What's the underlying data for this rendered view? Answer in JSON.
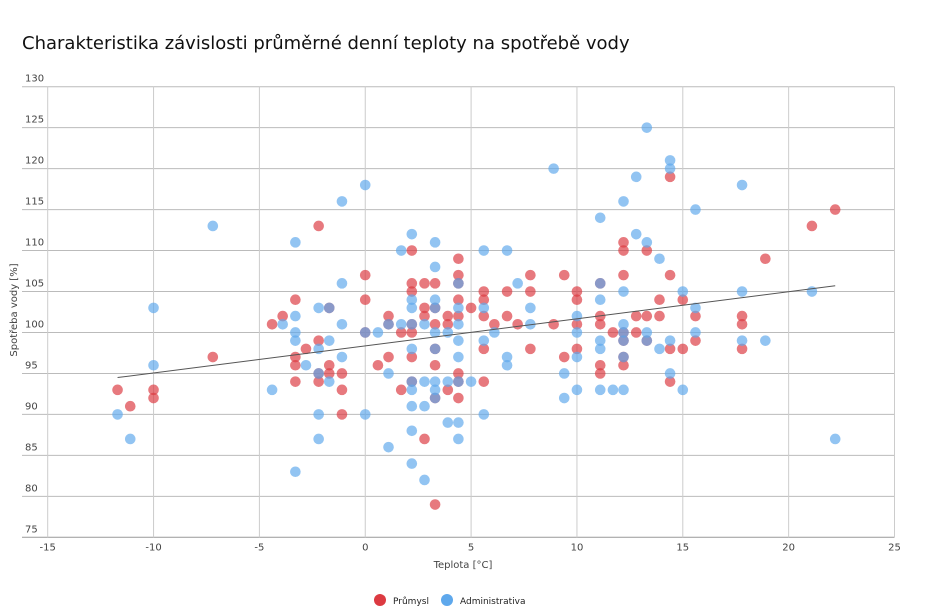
{
  "chart_data": {
    "type": "scatter",
    "title": "Charakteristika závislosti průměrné denní teploty na spotřebě vody",
    "xlabel": "Teplota [°C]",
    "ylabel": "Spotřeba vody [%]",
    "xlim": [
      -15,
      25
    ],
    "ylim": [
      75,
      130
    ],
    "xticks": [
      -15,
      -10,
      -5,
      0,
      5,
      10,
      15,
      20,
      25
    ],
    "yticks": [
      75,
      80,
      85,
      90,
      95,
      100,
      105,
      110,
      115,
      120,
      125,
      130
    ],
    "grid": true,
    "legend": "bottom",
    "trendline": {
      "x": [
        -11.7,
        22.2
      ],
      "y": [
        94.5,
        105.7
      ],
      "color": "#555555"
    },
    "series": [
      {
        "name": "Průmysl",
        "color": "#dc3a41",
        "points": [
          [
            -11.7,
            93
          ],
          [
            -11.1,
            91
          ],
          [
            -10,
            93
          ],
          [
            -10,
            92
          ],
          [
            -7.2,
            97
          ],
          [
            -4.4,
            101
          ],
          [
            -3.9,
            102
          ],
          [
            -3.3,
            104
          ],
          [
            -3.3,
            97
          ],
          [
            -3.3,
            96
          ],
          [
            -3.3,
            94
          ],
          [
            -2.8,
            98
          ],
          [
            -2.2,
            113
          ],
          [
            -2.2,
            99
          ],
          [
            -2.2,
            94
          ],
          [
            -2.2,
            95
          ],
          [
            -1.7,
            103
          ],
          [
            -1.7,
            96
          ],
          [
            -1.7,
            95
          ],
          [
            -1.1,
            95
          ],
          [
            -1.1,
            93
          ],
          [
            -1.1,
            90
          ],
          [
            0,
            107
          ],
          [
            0,
            104
          ],
          [
            0,
            100
          ],
          [
            0.6,
            96
          ],
          [
            1.1,
            102
          ],
          [
            1.1,
            101
          ],
          [
            1.1,
            97
          ],
          [
            1.7,
            100
          ],
          [
            1.7,
            93
          ],
          [
            2.2,
            110
          ],
          [
            2.2,
            106
          ],
          [
            2.2,
            105
          ],
          [
            2.2,
            101
          ],
          [
            2.2,
            100
          ],
          [
            2.2,
            97
          ],
          [
            2.2,
            94
          ],
          [
            2.8,
            106
          ],
          [
            2.8,
            103
          ],
          [
            2.8,
            102
          ],
          [
            2.8,
            87
          ],
          [
            3.3,
            106
          ],
          [
            3.3,
            103
          ],
          [
            3.3,
            101
          ],
          [
            3.3,
            98
          ],
          [
            3.3,
            96
          ],
          [
            3.3,
            92
          ],
          [
            3.3,
            79
          ],
          [
            3.9,
            102
          ],
          [
            3.9,
            101
          ],
          [
            3.9,
            93
          ],
          [
            4.4,
            109
          ],
          [
            4.4,
            107
          ],
          [
            4.4,
            106
          ],
          [
            4.4,
            104
          ],
          [
            4.4,
            102
          ],
          [
            4.4,
            95
          ],
          [
            4.4,
            94
          ],
          [
            4.4,
            92
          ],
          [
            5,
            103
          ],
          [
            5.6,
            105
          ],
          [
            5.6,
            104
          ],
          [
            5.6,
            102
          ],
          [
            5.6,
            98
          ],
          [
            5.6,
            94
          ],
          [
            6.1,
            101
          ],
          [
            6.7,
            105
          ],
          [
            6.7,
            102
          ],
          [
            7.2,
            101
          ],
          [
            7.8,
            107
          ],
          [
            7.8,
            105
          ],
          [
            7.8,
            98
          ],
          [
            8.9,
            101
          ],
          [
            9.4,
            107
          ],
          [
            9.4,
            97
          ],
          [
            10,
            105
          ],
          [
            10,
            104
          ],
          [
            10,
            101
          ],
          [
            10,
            98
          ],
          [
            11.1,
            106
          ],
          [
            11.1,
            102
          ],
          [
            11.1,
            101
          ],
          [
            11.1,
            96
          ],
          [
            11.1,
            95
          ],
          [
            11.7,
            100
          ],
          [
            12.2,
            111
          ],
          [
            12.2,
            110
          ],
          [
            12.2,
            107
          ],
          [
            12.2,
            100
          ],
          [
            12.2,
            99
          ],
          [
            12.2,
            97
          ],
          [
            12.2,
            96
          ],
          [
            12.8,
            102
          ],
          [
            12.8,
            100
          ],
          [
            13.3,
            110
          ],
          [
            13.3,
            102
          ],
          [
            13.3,
            99
          ],
          [
            13.9,
            104
          ],
          [
            13.9,
            102
          ],
          [
            14.4,
            119
          ],
          [
            14.4,
            107
          ],
          [
            14.4,
            98
          ],
          [
            14.4,
            94
          ],
          [
            15,
            104
          ],
          [
            15,
            98
          ],
          [
            15.6,
            102
          ],
          [
            15.6,
            99
          ],
          [
            17.8,
            102
          ],
          [
            17.8,
            101
          ],
          [
            17.8,
            98
          ],
          [
            18.9,
            109
          ],
          [
            21.1,
            113
          ],
          [
            22.2,
            115
          ]
        ]
      },
      {
        "name": "Administrativa",
        "color": "#5ea8ec",
        "points": [
          [
            -11.7,
            90
          ],
          [
            -11.1,
            87
          ],
          [
            -10,
            103
          ],
          [
            -10,
            96
          ],
          [
            -7.2,
            113
          ],
          [
            -4.4,
            93
          ],
          [
            -3.9,
            101
          ],
          [
            -3.3,
            111
          ],
          [
            -3.3,
            102
          ],
          [
            -3.3,
            100
          ],
          [
            -3.3,
            99
          ],
          [
            -3.3,
            83
          ],
          [
            -2.8,
            96
          ],
          [
            -2.2,
            103
          ],
          [
            -2.2,
            98
          ],
          [
            -2.2,
            95
          ],
          [
            -2.2,
            90
          ],
          [
            -2.2,
            87
          ],
          [
            -1.7,
            103
          ],
          [
            -1.7,
            99
          ],
          [
            -1.7,
            94
          ],
          [
            -1.1,
            116
          ],
          [
            -1.1,
            106
          ],
          [
            -1.1,
            101
          ],
          [
            -1.1,
            97
          ],
          [
            0,
            118
          ],
          [
            0,
            100
          ],
          [
            0,
            90
          ],
          [
            0.6,
            100
          ],
          [
            1.1,
            101
          ],
          [
            1.1,
            95
          ],
          [
            1.1,
            86
          ],
          [
            1.7,
            110
          ],
          [
            1.7,
            101
          ],
          [
            2.2,
            112
          ],
          [
            2.2,
            104
          ],
          [
            2.2,
            103
          ],
          [
            2.2,
            101
          ],
          [
            2.2,
            98
          ],
          [
            2.2,
            94
          ],
          [
            2.2,
            93
          ],
          [
            2.2,
            91
          ],
          [
            2.2,
            88
          ],
          [
            2.2,
            84
          ],
          [
            2.8,
            101
          ],
          [
            2.8,
            94
          ],
          [
            2.8,
            91
          ],
          [
            2.8,
            82
          ],
          [
            3.3,
            111
          ],
          [
            3.3,
            108
          ],
          [
            3.3,
            104
          ],
          [
            3.3,
            103
          ],
          [
            3.3,
            100
          ],
          [
            3.3,
            98
          ],
          [
            3.3,
            94
          ],
          [
            3.3,
            93
          ],
          [
            3.3,
            92
          ],
          [
            3.9,
            100
          ],
          [
            3.9,
            94
          ],
          [
            3.9,
            89
          ],
          [
            4.4,
            106
          ],
          [
            4.4,
            103
          ],
          [
            4.4,
            101
          ],
          [
            4.4,
            99
          ],
          [
            4.4,
            97
          ],
          [
            4.4,
            94
          ],
          [
            4.4,
            89
          ],
          [
            4.4,
            87
          ],
          [
            5,
            94
          ],
          [
            5.6,
            110
          ],
          [
            5.6,
            103
          ],
          [
            5.6,
            99
          ],
          [
            5.6,
            90
          ],
          [
            6.1,
            100
          ],
          [
            6.7,
            110
          ],
          [
            6.7,
            97
          ],
          [
            6.7,
            96
          ],
          [
            7.2,
            106
          ],
          [
            7.8,
            103
          ],
          [
            7.8,
            101
          ],
          [
            8.9,
            120
          ],
          [
            9.4,
            95
          ],
          [
            9.4,
            92
          ],
          [
            10,
            102
          ],
          [
            10,
            100
          ],
          [
            10,
            97
          ],
          [
            10,
            93
          ],
          [
            11.1,
            114
          ],
          [
            11.1,
            106
          ],
          [
            11.1,
            104
          ],
          [
            11.1,
            99
          ],
          [
            11.1,
            98
          ],
          [
            11.1,
            93
          ],
          [
            11.7,
            93
          ],
          [
            12.2,
            116
          ],
          [
            12.2,
            105
          ],
          [
            12.2,
            101
          ],
          [
            12.2,
            100
          ],
          [
            12.2,
            99
          ],
          [
            12.2,
            97
          ],
          [
            12.2,
            93
          ],
          [
            12.8,
            119
          ],
          [
            12.8,
            112
          ],
          [
            13.3,
            125
          ],
          [
            13.3,
            111
          ],
          [
            13.3,
            100
          ],
          [
            13.3,
            99
          ],
          [
            13.9,
            109
          ],
          [
            13.9,
            98
          ],
          [
            14.4,
            121
          ],
          [
            14.4,
            120
          ],
          [
            14.4,
            99
          ],
          [
            14.4,
            95
          ],
          [
            15,
            105
          ],
          [
            15,
            93
          ],
          [
            15.6,
            115
          ],
          [
            15.6,
            103
          ],
          [
            15.6,
            100
          ],
          [
            17.8,
            118
          ],
          [
            17.8,
            105
          ],
          [
            17.8,
            99
          ],
          [
            18.9,
            99
          ],
          [
            21.1,
            105
          ],
          [
            22.2,
            87
          ]
        ]
      }
    ]
  }
}
